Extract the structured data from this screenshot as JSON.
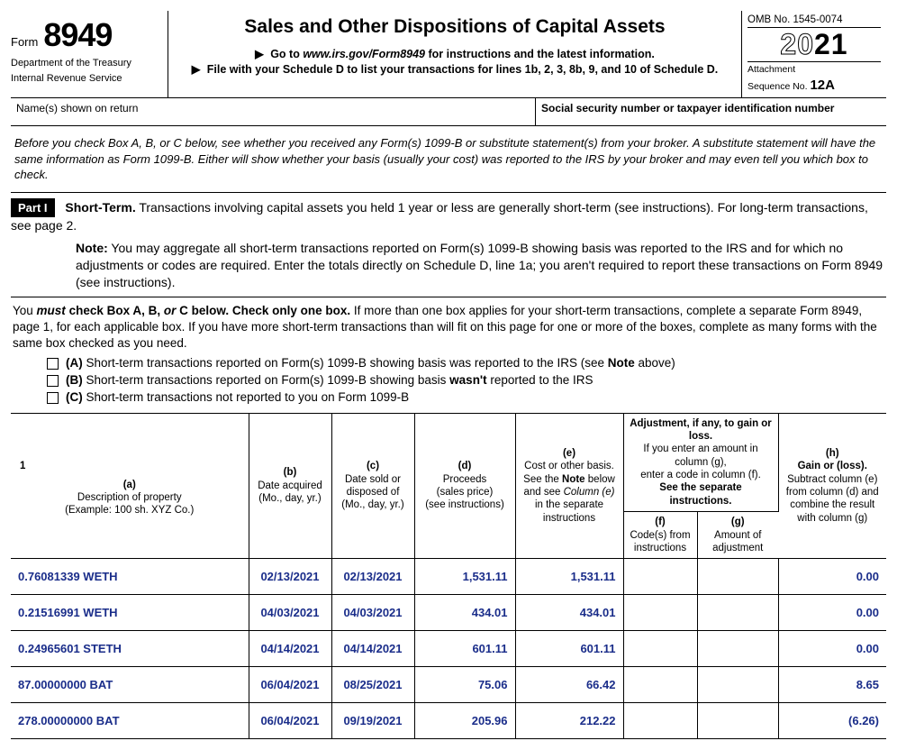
{
  "header": {
    "form_word": "Form",
    "form_number": "8949",
    "dept1": "Department of the Treasury",
    "dept2": "Internal Revenue Service",
    "title": "Sales and Other Dispositions of Capital Assets",
    "sub_goto_pre": "Go to ",
    "sub_goto_url": "www.irs.gov/Form8949",
    "sub_goto_post": " for instructions and the latest information.",
    "sub_file": "File with your Schedule D to list your transactions for lines 1b, 2, 3, 8b, 9, and 10 of Schedule D.",
    "omb": "OMB No. 1545-0074",
    "year_prefix": "20",
    "year_suffix": "21",
    "attach_label": "Attachment",
    "seq_label": "Sequence No. ",
    "seq_no": "12A"
  },
  "name_row": {
    "name_label": "Name(s) shown on return",
    "ssn_label": "Social security number or taxpayer identification number"
  },
  "intro": "Before you check Box A, B, or C below, see whether you received any Form(s) 1099-B or substitute statement(s) from your broker. A substitute statement will have the same information as Form 1099-B. Either will show whether your basis (usually your cost) was reported to the IRS by your broker and may even tell you which box to check.",
  "part1": {
    "label": "Part I",
    "shortterm_bold": "Short-Term.",
    "shortterm_text": " Transactions involving capital assets you held 1 year or less are generally short-term (see instructions). For long-term transactions, see page 2.",
    "note_bold": "Note:",
    "note_text": " You may aggregate all short-term transactions reported on Form(s) 1099-B showing basis was reported to the IRS and for which no adjustments or codes are required. Enter the totals directly on Schedule D, line 1a; you aren't required to report these transactions on Form 8949 (see instructions)."
  },
  "checkboxes": {
    "intro_pre": "You ",
    "intro_must": "must",
    "intro_mid": " check Box A, B, ",
    "intro_or": "or",
    "intro_post": " C below. Check only one box.",
    "intro_rest": " If more than one box applies for your short-term transactions, complete a separate Form 8949, page 1, for each applicable box. If you have more short-term transactions than will fit on this page for one or more of the boxes, complete as many forms with the same box checked as you need.",
    "a_pre": "(A) ",
    "a_text": "Short-term transactions reported on Form(s) 1099-B showing basis was reported to the IRS (see ",
    "a_note": "Note",
    "a_post": " above)",
    "b_pre": "(B) ",
    "b_text1": "Short-term transactions reported on Form(s) 1099-B showing basis ",
    "b_wasnt": "wasn't",
    "b_text2": " reported to the IRS",
    "c_pre": "(C) ",
    "c_text": "Short-term transactions not reported to you on Form 1099-B"
  },
  "table": {
    "row_one": "1",
    "col_a_bold": "(a)",
    "col_a_l1": "Description of property",
    "col_a_l2": "(Example: 100 sh. XYZ Co.)",
    "col_b_bold": "(b)",
    "col_b_l1": "Date acquired",
    "col_b_l2": "(Mo., day, yr.)",
    "col_c_bold": "(c)",
    "col_c_l1": "Date sold or disposed of",
    "col_c_l2": "(Mo., day, yr.)",
    "col_d_bold": "(d)",
    "col_d_l1": "Proceeds",
    "col_d_l2": "(sales price)",
    "col_d_l3": "(see instructions)",
    "col_e_bold": "(e)",
    "col_e_l1": "Cost or other basis.",
    "col_e_l2a": "See the ",
    "col_e_note": "Note",
    "col_e_l2b": " below",
    "col_e_l3a": "and see ",
    "col_e_l3i": "Column (e)",
    "col_e_l4": "in the separate instructions",
    "col_adj_l1": "Adjustment, if any, to gain or loss.",
    "col_adj_l2": "If you enter an amount in column (g),",
    "col_adj_l3": "enter a code in column (f).",
    "col_adj_l4": "See the separate instructions.",
    "col_f_bold": "(f)",
    "col_f_l1": "Code(s) from instructions",
    "col_g_bold": "(g)",
    "col_g_l1": "Amount of adjustment",
    "col_h_bold": "(h)",
    "col_h_l1": "Gain or (loss).",
    "col_h_l2": "Subtract column (e) from column (d) and combine the result with column (g)"
  },
  "rows": [
    {
      "a": "0.76081339 WETH",
      "b": "02/13/2021",
      "c": "02/13/2021",
      "d": "1,531.11",
      "e": "1,531.11",
      "f": "",
      "g": "",
      "h": "0.00"
    },
    {
      "a": "0.21516991 WETH",
      "b": "04/03/2021",
      "c": "04/03/2021",
      "d": "434.01",
      "e": "434.01",
      "f": "",
      "g": "",
      "h": "0.00"
    },
    {
      "a": "0.24965601 STETH",
      "b": "04/14/2021",
      "c": "04/14/2021",
      "d": "601.11",
      "e": "601.11",
      "f": "",
      "g": "",
      "h": "0.00"
    },
    {
      "a": "87.00000000 BAT",
      "b": "06/04/2021",
      "c": "08/25/2021",
      "d": "75.06",
      "e": "66.42",
      "f": "",
      "g": "",
      "h": "8.65"
    },
    {
      "a": "278.00000000 BAT",
      "b": "06/04/2021",
      "c": "09/19/2021",
      "d": "205.96",
      "e": "212.22",
      "f": "",
      "g": "",
      "h": "(6.26)"
    }
  ],
  "colors": {
    "data_text": "#1a2d8a",
    "border": "#000000",
    "background": "#ffffff"
  }
}
